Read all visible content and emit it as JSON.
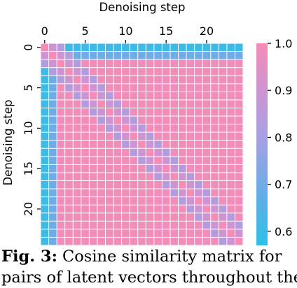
{
  "chart_data": {
    "type": "heatmap",
    "title": "",
    "xlabel": "Denoising step",
    "ylabel": "Denoising step",
    "n_steps": 25,
    "x_ticks": [
      0,
      5,
      10,
      15,
      20
    ],
    "y_ticks": [
      0,
      5,
      10,
      15,
      20
    ],
    "colorbar": {
      "min": 0.57,
      "max": 1.0,
      "ticks": [
        0.6,
        0.7,
        0.8,
        0.9,
        1.0
      ],
      "tick_labels": [
        "0.6",
        "0.7",
        "0.8",
        "0.9",
        "1.0"
      ],
      "colors": [
        "#2ec0e6",
        "#62aee6",
        "#a0a2e6",
        "#cb94d4",
        "#f48cb6"
      ]
    },
    "values": {
      "diagonal": 1.0,
      "neighbor_1": 0.9,
      "neighbor_2": 0.83,
      "first_row_far_min": 0.6,
      "second_row_far": 0.7,
      "rest_far": 0.99
    },
    "cell_gap_color": "#ffffff"
  },
  "caption": {
    "label": "Fig. 3:",
    "text": "Cosine similarity matrix for",
    "text_line2": "pairs of latent vectors throughout the"
  }
}
